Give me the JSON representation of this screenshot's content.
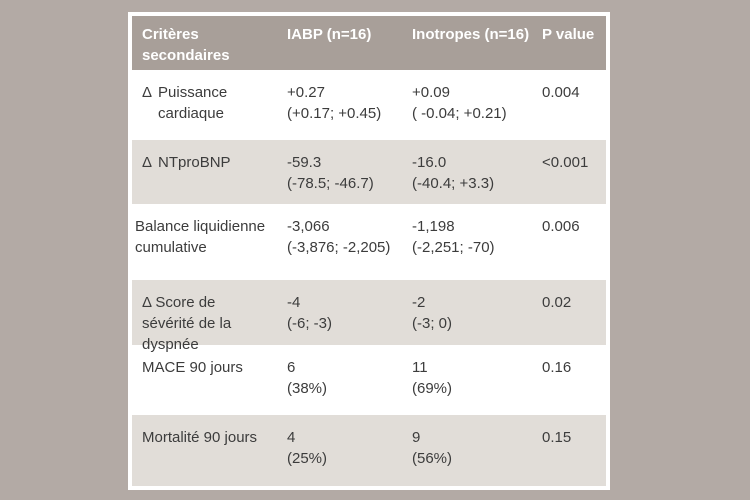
{
  "chart_data": {
    "type": "table",
    "title": "Critères secondaires — IABP vs Inotropes",
    "columns": {
      "criteria": "Critères secondaires",
      "iabp": "IABP (n=16)",
      "inotropes": "Inotropes (n=16)",
      "p": "P value"
    },
    "rows": [
      {
        "delta": "Δ",
        "label": "Puissance cardiaque",
        "iabp": {
          "value": "+0.27",
          "ci": "(+0.17; +0.45)"
        },
        "inotropes": {
          "value": "+0.09",
          "ci": "( -0.04; +0.21)"
        },
        "p": "0.004"
      },
      {
        "delta": "Δ",
        "label": "NTproBNP",
        "iabp": {
          "value": "-59.3",
          "ci": "(-78.5; -46.7)"
        },
        "inotropes": {
          "value": "-16.0",
          "ci": "(-40.4; +3.3)"
        },
        "p": "<0.001"
      },
      {
        "delta": "",
        "label": "Balance liquidienne cumulative",
        "iabp": {
          "value": "-3,066",
          "ci": "(-3,876; -2,205)"
        },
        "inotropes": {
          "value": "-1,198",
          "ci": "(-2,251; -70)"
        },
        "p": "0.006"
      },
      {
        "delta": "",
        "label": "Δ Score de sévérité de la dyspnée",
        "iabp": {
          "value": "-4",
          "ci": "(-6; -3)"
        },
        "inotropes": {
          "value": "-2",
          "ci": "(-3; 0)"
        },
        "p": "0.02"
      },
      {
        "delta": "",
        "label": "MACE 90 jours",
        "iabp": {
          "value": "6",
          "ci": "(38%)"
        },
        "inotropes": {
          "value": "11",
          "ci": "(69%)"
        },
        "p": "0.16"
      },
      {
        "delta": "",
        "label": "Mortalité 90 jours",
        "iabp": {
          "value": "4",
          "ci": "(25%)"
        },
        "inotropes": {
          "value": "9",
          "ci": "(56%)"
        },
        "p": "0.15"
      }
    ],
    "layout": {
      "legend": "none",
      "grid": "alternating-row-shading"
    }
  },
  "colors": {
    "page_background": "#b3aaa5",
    "card_background": "#ffffff",
    "header_background": "#a89f99",
    "header_text": "#ffffff",
    "shaded_row_background": "#e1ddd8",
    "body_text": "#3c3c3c"
  }
}
